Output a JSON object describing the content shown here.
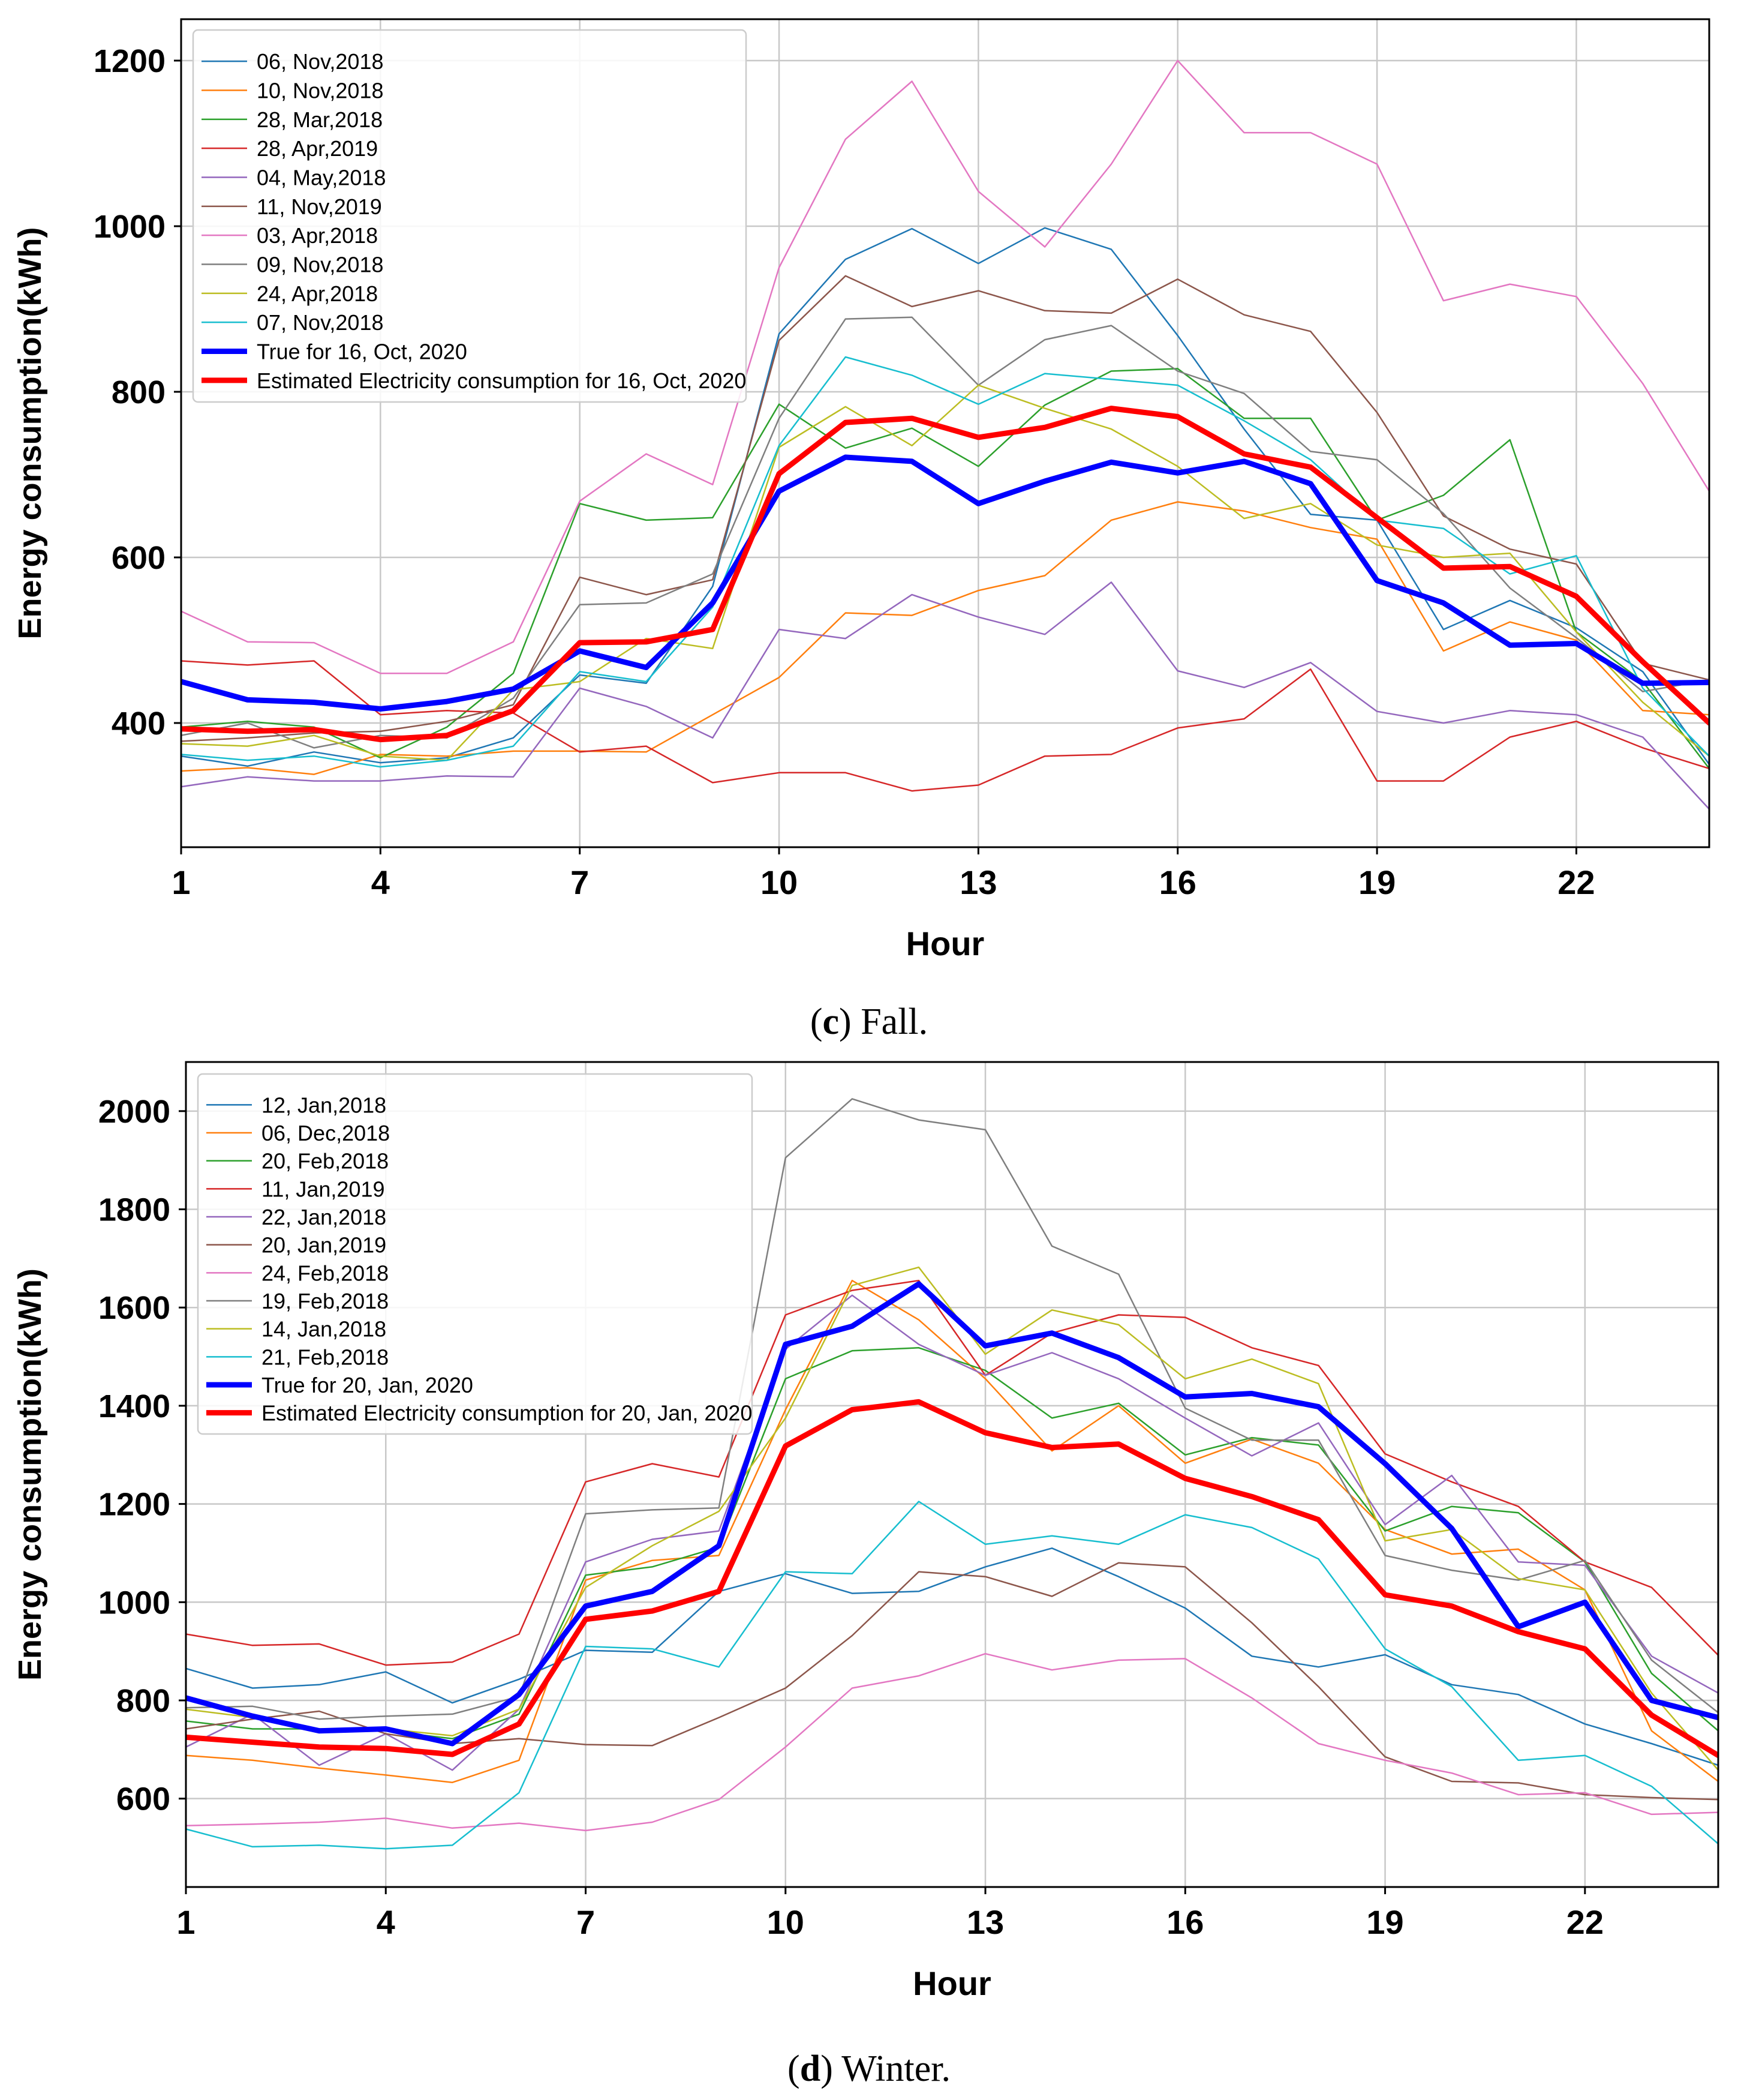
{
  "figure": {
    "panel_c_caption": {
      "letter": "c",
      "text": "Fall."
    },
    "panel_d_caption": {
      "letter": "d",
      "text": "Winter."
    }
  },
  "chart_data": [
    {
      "type": "line",
      "panel": "c",
      "title": "",
      "xlabel": "Hour",
      "ylabel": "Energy consumption(kWh)",
      "xlim": [
        1,
        24
      ],
      "ylim": [
        250,
        1250
      ],
      "xticks": [
        1,
        4,
        7,
        10,
        13,
        16,
        19,
        22
      ],
      "yticks": [
        400,
        600,
        800,
        1000,
        1200
      ],
      "grid": true,
      "legend_position": "top-left",
      "x": [
        1,
        2,
        3,
        4,
        5,
        6,
        7,
        8,
        9,
        10,
        11,
        12,
        13,
        14,
        15,
        16,
        17,
        18,
        19,
        20,
        21,
        22,
        23,
        24
      ],
      "series": [
        {
          "name": "06, Nov,2018",
          "color": "#1f77b4",
          "width": 2.5,
          "values": [
            360,
            348,
            365,
            352,
            358,
            382,
            458,
            448,
            565,
            870,
            960,
            997,
            955,
            998,
            972,
            868,
            755,
            652,
            645,
            513,
            548,
            515,
            462,
            350
          ]
        },
        {
          "name": "10, Nov,2018",
          "color": "#ff7f0e",
          "width": 2.5,
          "values": [
            342,
            346,
            338,
            362,
            360,
            366,
            366,
            365,
            410,
            455,
            533,
            530,
            560,
            578,
            645,
            667,
            656,
            636,
            622,
            487,
            522,
            500,
            415,
            410
          ]
        },
        {
          "name": "28, Mar,2018",
          "color": "#2ca02c",
          "width": 2.5,
          "values": [
            395,
            402,
            395,
            358,
            395,
            460,
            665,
            645,
            648,
            785,
            732,
            756,
            710,
            784,
            825,
            828,
            768,
            768,
            645,
            675,
            742,
            510,
            450,
            345
          ]
        },
        {
          "name": "28, Apr,2019",
          "color": "#d62728",
          "width": 2.5,
          "values": [
            475,
            470,
            475,
            410,
            415,
            412,
            365,
            372,
            328,
            340,
            340,
            318,
            325,
            360,
            362,
            394,
            405,
            465,
            330,
            330,
            383,
            402,
            370,
            345
          ]
        },
        {
          "name": "04, May,2018",
          "color": "#9467bd",
          "width": 2.5,
          "values": [
            323,
            335,
            330,
            330,
            336,
            335,
            442,
            420,
            382,
            513,
            502,
            555,
            528,
            507,
            570,
            463,
            443,
            473,
            414,
            400,
            415,
            410,
            383,
            296
          ]
        },
        {
          "name": "11, Nov,2019",
          "color": "#8c564b",
          "width": 2.5,
          "values": [
            378,
            382,
            388,
            390,
            402,
            422,
            576,
            555,
            573,
            862,
            940,
            903,
            922,
            898,
            895,
            936,
            893,
            873,
            775,
            650,
            610,
            592,
            472,
            452
          ]
        },
        {
          "name": "03, Apr,2018",
          "color": "#e377c2",
          "width": 2.5,
          "values": [
            535,
            498,
            497,
            460,
            460,
            498,
            668,
            725,
            688,
            950,
            1105,
            1175,
            1042,
            975,
            1075,
            1200,
            1113,
            1113,
            1075,
            910,
            930,
            915,
            810,
            680
          ]
        },
        {
          "name": "09, Nov,2018",
          "color": "#7f7f7f",
          "width": 2.5,
          "values": [
            385,
            400,
            370,
            385,
            382,
            430,
            543,
            545,
            580,
            768,
            888,
            890,
            808,
            863,
            880,
            825,
            798,
            728,
            718,
            653,
            563,
            503,
            438,
            452
          ]
        },
        {
          "name": "24, Apr,2018",
          "color": "#bcbd22",
          "width": 2.5,
          "values": [
            375,
            372,
            385,
            360,
            355,
            440,
            450,
            502,
            490,
            733,
            782,
            735,
            808,
            780,
            755,
            710,
            647,
            665,
            615,
            600,
            605,
            510,
            425,
            360
          ]
        },
        {
          "name": "07, Nov,2018",
          "color": "#17becf",
          "width": 2.5,
          "values": [
            362,
            355,
            360,
            347,
            355,
            372,
            462,
            450,
            540,
            735,
            842,
            820,
            785,
            822,
            815,
            808,
            765,
            718,
            645,
            635,
            580,
            602,
            442,
            360
          ]
        },
        {
          "name": "True for 16, Oct, 2020",
          "color": "#0000ff",
          "width": 9,
          "values": [
            450,
            428,
            425,
            417,
            426,
            441,
            487,
            467,
            545,
            680,
            721,
            716,
            665,
            692,
            715,
            702,
            716,
            689,
            572,
            545,
            494,
            496,
            448,
            449
          ]
        },
        {
          "name": "Estimated Electricity consumption for 16, Oct, 2020",
          "color": "#ff0000",
          "width": 9,
          "values": [
            393,
            390,
            392,
            380,
            385,
            415,
            497,
            498,
            513,
            701,
            763,
            768,
            745,
            757,
            780,
            770,
            725,
            709,
            648,
            587,
            589,
            553,
            474,
            400
          ]
        }
      ]
    },
    {
      "type": "line",
      "panel": "d",
      "title": "",
      "xlabel": "Hour",
      "ylabel": "Energy consumption(kWh)",
      "xlim": [
        1,
        24
      ],
      "ylim": [
        420,
        2100
      ],
      "xticks": [
        1,
        4,
        7,
        10,
        13,
        16,
        19,
        22
      ],
      "yticks": [
        600,
        800,
        1000,
        1200,
        1400,
        1600,
        1800,
        2000
      ],
      "grid": true,
      "legend_position": "top-left",
      "x": [
        1,
        2,
        3,
        4,
        5,
        6,
        7,
        8,
        9,
        10,
        11,
        12,
        13,
        14,
        15,
        16,
        17,
        18,
        19,
        20,
        21,
        22,
        23,
        24
      ],
      "series": [
        {
          "name": "12, Jan,2018",
          "color": "#1f77b4",
          "width": 2.5,
          "values": [
            865,
            825,
            832,
            858,
            795,
            843,
            902,
            898,
            1022,
            1058,
            1018,
            1022,
            1072,
            1110,
            1052,
            988,
            890,
            868,
            893,
            832,
            812,
            752,
            712,
            668
          ]
        },
        {
          "name": "06, Dec,2018",
          "color": "#ff7f0e",
          "width": 2.5,
          "values": [
            688,
            678,
            662,
            648,
            633,
            678,
            1045,
            1085,
            1095,
            1392,
            1655,
            1575,
            1455,
            1308,
            1400,
            1283,
            1332,
            1283,
            1148,
            1098,
            1108,
            1025,
            738,
            635
          ]
        },
        {
          "name": "20, Feb,2018",
          "color": "#2ca02c",
          "width": 2.5,
          "values": [
            758,
            742,
            742,
            738,
            722,
            772,
            1055,
            1072,
            1112,
            1455,
            1512,
            1518,
            1472,
            1375,
            1405,
            1300,
            1335,
            1320,
            1145,
            1195,
            1182,
            1082,
            855,
            738
          ]
        },
        {
          "name": "11, Jan,2019",
          "color": "#d62728",
          "width": 2.5,
          "values": [
            935,
            912,
            915,
            872,
            878,
            935,
            1245,
            1282,
            1255,
            1585,
            1635,
            1655,
            1462,
            1548,
            1585,
            1580,
            1518,
            1482,
            1302,
            1245,
            1195,
            1082,
            1030,
            892
          ]
        },
        {
          "name": "22, Jan,2018",
          "color": "#9467bd",
          "width": 2.5,
          "values": [
            705,
            772,
            668,
            732,
            658,
            782,
            1082,
            1128,
            1145,
            1515,
            1625,
            1525,
            1462,
            1508,
            1455,
            1375,
            1298,
            1365,
            1158,
            1258,
            1082,
            1075,
            890,
            815
          ]
        },
        {
          "name": "20, Jan,2019",
          "color": "#8c564b",
          "width": 2.5,
          "values": [
            742,
            762,
            778,
            732,
            712,
            722,
            710,
            708,
            765,
            825,
            932,
            1062,
            1052,
            1012,
            1080,
            1072,
            958,
            828,
            685,
            635,
            632,
            608,
            602,
            598
          ]
        },
        {
          "name": "24, Feb,2018",
          "color": "#e377c2",
          "width": 2.5,
          "values": [
            545,
            548,
            552,
            560,
            540,
            550,
            535,
            552,
            598,
            705,
            825,
            850,
            895,
            862,
            882,
            885,
            805,
            712,
            678,
            652,
            608,
            612,
            568,
            572
          ]
        },
        {
          "name": "19, Feb,2018",
          "color": "#7f7f7f",
          "width": 2.5,
          "values": [
            785,
            788,
            762,
            768,
            772,
            808,
            1180,
            1188,
            1192,
            1905,
            2025,
            1982,
            1962,
            1725,
            1668,
            1395,
            1330,
            1330,
            1095,
            1065,
            1045,
            1085,
            882,
            775
          ]
        },
        {
          "name": "14, Jan,2018",
          "color": "#bcbd22",
          "width": 2.5,
          "values": [
            782,
            765,
            742,
            742,
            728,
            782,
            1030,
            1115,
            1185,
            1375,
            1645,
            1682,
            1505,
            1595,
            1565,
            1455,
            1495,
            1445,
            1125,
            1148,
            1048,
            1025,
            815,
            658
          ]
        },
        {
          "name": "21, Feb,2018",
          "color": "#17becf",
          "width": 2.5,
          "values": [
            538,
            502,
            505,
            498,
            505,
            612,
            910,
            905,
            868,
            1062,
            1058,
            1205,
            1118,
            1135,
            1118,
            1178,
            1152,
            1088,
            905,
            828,
            678,
            688,
            625,
            508
          ]
        },
        {
          "name": "True for 20, Jan, 2020",
          "color": "#0000ff",
          "width": 9,
          "values": [
            805,
            768,
            738,
            742,
            712,
            812,
            992,
            1022,
            1115,
            1525,
            1562,
            1648,
            1522,
            1548,
            1498,
            1418,
            1425,
            1398,
            1282,
            1150,
            950,
            1000,
            800,
            765
          ]
        },
        {
          "name": "Estimated Electricity consumption for 20, Jan, 2020",
          "color": "#ff0000",
          "width": 9,
          "values": [
            725,
            715,
            705,
            702,
            690,
            752,
            965,
            982,
            1022,
            1318,
            1392,
            1408,
            1345,
            1315,
            1322,
            1252,
            1215,
            1168,
            1015,
            992,
            940,
            905,
            770,
            688
          ]
        }
      ]
    }
  ]
}
